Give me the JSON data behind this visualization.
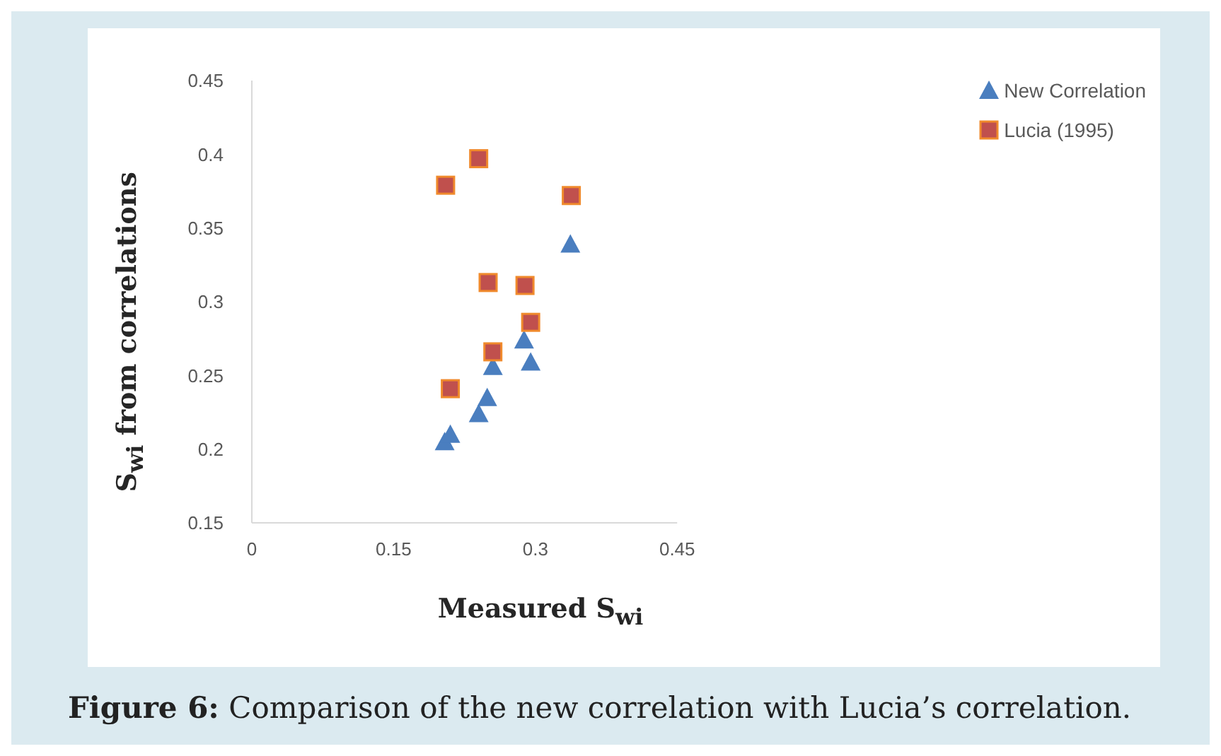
{
  "chart_data": {
    "type": "scatter",
    "xlabel": "Measured S$_{wi}$",
    "ylabel": "S$_{wi}$ from correlations",
    "annotations": [
      "Figure 6: Comparison of the new correlation with Lucia’s correlation."
    ],
    "series": [
      {
        "name": "New Correlation",
        "color": "#4a7ebf",
        "marker": "triangle",
        "x": [
          0.204,
          0.21,
          0.24,
          0.249,
          0.255,
          0.288,
          0.295,
          0.337
        ],
        "values": [
          0.205,
          0.21,
          0.224,
          0.235,
          0.256,
          0.274,
          0.259,
          0.339
        ]
      },
      {
        "name": "Lucia (1995)",
        "color": "#c0504d",
        "marker": "square",
        "x": [
          0.205,
          0.24,
          0.338,
          0.25,
          0.289,
          0.295,
          0.255,
          0.21
        ],
        "values": [
          0.379,
          0.397,
          0.372,
          0.313,
          0.311,
          0.286,
          0.266,
          0.241
        ]
      }
    ],
    "xlim": [
      0,
      0.45
    ],
    "xticks": [
      0,
      0.15,
      0.3,
      0.45
    ],
    "ylim": [
      0.15,
      0.45
    ],
    "yticks": [
      0.15,
      0.2,
      0.25,
      0.3,
      0.35,
      0.4,
      0.45
    ],
    "grid": false,
    "legend": "top right"
  }
}
